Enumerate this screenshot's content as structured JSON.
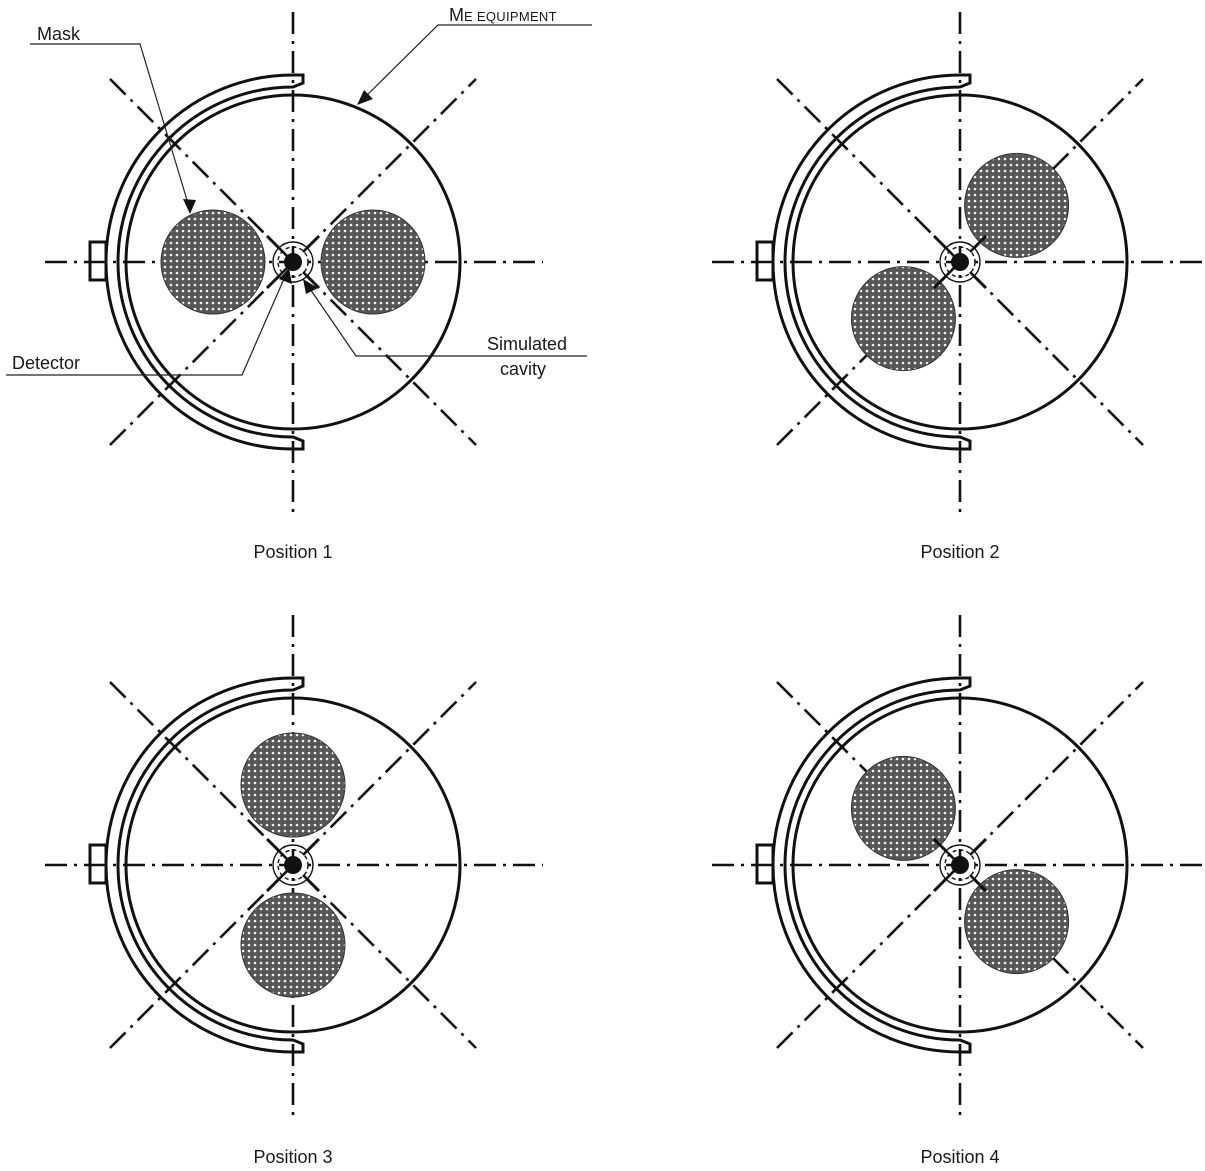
{
  "labels": {
    "mask": "Mask",
    "me_equipment_prefix": "M",
    "me_equipment_rest": "E EQUIPMENT",
    "detector": "Detector",
    "simulated_cavity_line1": "Simulated",
    "simulated_cavity_line2": "cavity"
  },
  "positions": [
    {
      "caption": "Position 1",
      "mask_angles_deg": [
        0,
        180
      ]
    },
    {
      "caption": "Position 2",
      "mask_angles_deg": [
        45,
        225
      ]
    },
    {
      "caption": "Position 3",
      "mask_angles_deg": [
        90,
        270
      ]
    },
    {
      "caption": "Position 4",
      "mask_angles_deg": [
        135,
        315
      ]
    }
  ],
  "colors": {
    "line": "#111111",
    "mask_fill": "#555555",
    "mask_dot": "#ffffff",
    "background": "#ffffff"
  }
}
